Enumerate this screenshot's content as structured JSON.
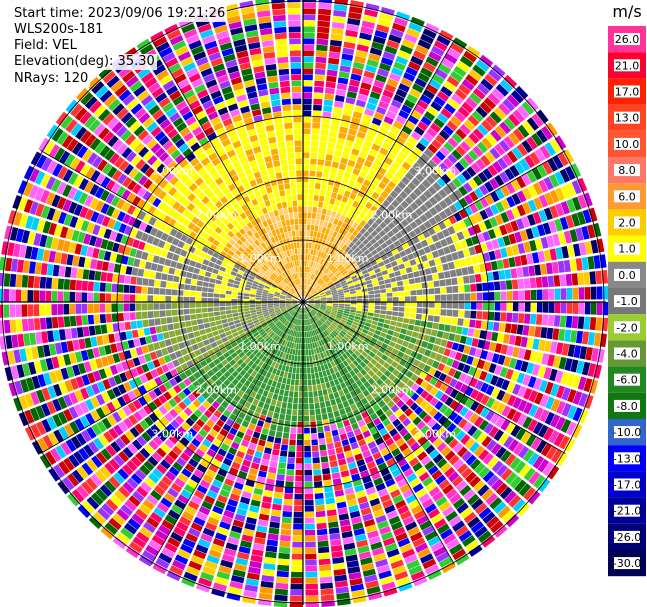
{
  "header": {
    "start_time": "Start time: 2023/09/06 19:21:26",
    "instrument": "WLS200s-181",
    "field": "Field: VEL",
    "elevation": "Elevation(deg): 35.30",
    "nrays": "NRays: 120"
  },
  "ring_labels": [
    "1.00km",
    "2.00km",
    "3.00km"
  ],
  "colorbar": {
    "unit": "m/s",
    "ticks": [
      "26.0",
      "21.0",
      "17.0",
      "13.0",
      "10.0",
      "8.0",
      "6.0",
      "2.0",
      "1.0",
      "0.0",
      "-1.0",
      "-2.0",
      "-4.0",
      "-6.0",
      "-8.0",
      "-10.0",
      "-13.0",
      "-17.0",
      "-21.0",
      "-26.0",
      "-30.0"
    ],
    "colors": [
      "#ff3399",
      "#ff0033",
      "#ff2200",
      "#ff4422",
      "#ff5533",
      "#ff7766",
      "#ff9933",
      "#ffcc00",
      "#ffff00",
      "#888888",
      "#777777",
      "#99cc33",
      "#669933",
      "#228822",
      "#117711",
      "#3366cc",
      "#0000ff",
      "#0000cc",
      "#000099",
      "#000077",
      "#000055"
    ]
  },
  "ppi": {
    "nrays": 120,
    "max_range_km": 3.3,
    "noise_palette": [
      "#ff33cc",
      "#ff0066",
      "#cc00cc",
      "#9933ff",
      "#0000ff",
      "#000099",
      "#ffff00",
      "#ff9900",
      "#33cc33",
      "#006600",
      "#ff3333",
      "#00ccff",
      "#ff66ff",
      "#000066",
      "#cc0000",
      "#ffcc00"
    ],
    "colors": {
      "yellow": "#ffff00",
      "orange": "#ffaa00",
      "gray": "#808080",
      "green": "#339933",
      "olive": "#88aa33"
    }
  }
}
